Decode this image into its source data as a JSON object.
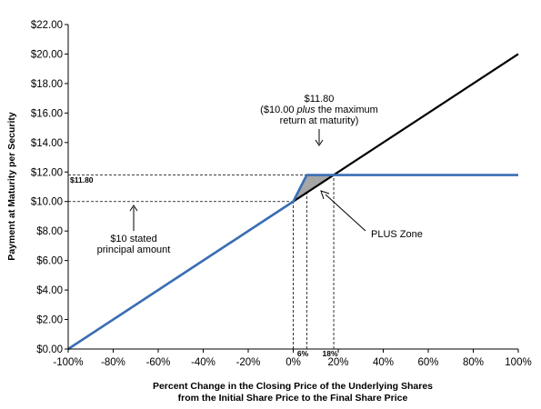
{
  "chart_data": {
    "type": "line",
    "title": "",
    "xlabel": [
      "Percent Change in the Closing Price of the Underlying Shares",
      "from the Initial Share Price to the Final Share Price"
    ],
    "ylabel": "Payment at Maturity per Security",
    "xlim": [
      -100,
      100
    ],
    "ylim": [
      0,
      22
    ],
    "grid": false,
    "x_ticks": [
      "-100%",
      "-80%",
      "-60%",
      "-40%",
      "-20%",
      "0%",
      "20%",
      "40%",
      "60%",
      "80%",
      "100%"
    ],
    "y_ticks": [
      "$0.00",
      "$2.00",
      "$4.00",
      "$6.00",
      "$8.00",
      "$10.00",
      "$12.00",
      "$14.00",
      "$16.00",
      "$18.00",
      "$20.00",
      "$22.00"
    ],
    "series": [
      {
        "color": "#000000",
        "points": [
          {
            "x": -100,
            "y": 0
          },
          {
            "x": 100,
            "y": 20
          }
        ]
      },
      {
        "color": "#3a6eb5",
        "points": [
          {
            "x": -100,
            "y": 0
          },
          {
            "x": 0,
            "y": 10
          },
          {
            "x": 6,
            "y": 11.8
          },
          {
            "x": 100,
            "y": 11.8
          }
        ]
      }
    ],
    "shaded_region": {
      "fill": "#a6a6a6",
      "points": [
        {
          "x": 0,
          "y": 10
        },
        {
          "x": 6,
          "y": 11.8
        },
        {
          "x": 18,
          "y": 11.8
        }
      ]
    },
    "reference_lines": {
      "horizontal": [
        10,
        11.8
      ],
      "vertical": [
        0,
        6,
        18
      ]
    },
    "annotations": {
      "max_value_label": "$11.80",
      "max_value_note": [
        "$11.80",
        "($10.00 ",
        "plus",
        " the maximum",
        "return at maturity)"
      ],
      "principal_note": [
        "$10 stated",
        "principal amount"
      ],
      "plus_zone_label": "PLUS Zone",
      "x_marker_6": "6%",
      "x_marker_18": "18%"
    }
  }
}
